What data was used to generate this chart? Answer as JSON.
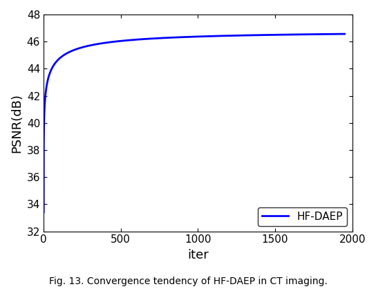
{
  "xlabel": "iter",
  "ylabel": "PSNR(dB)",
  "caption": "Fig. 13. Convergence tendency of HF-DAEP in CT imaging.",
  "legend_label": "HF-DAEP",
  "line_color": "#0000ff",
  "line_width": 2.0,
  "xlim": [
    0,
    2000
  ],
  "ylim": [
    32,
    48
  ],
  "xticks": [
    0,
    500,
    1000,
    1500,
    2000
  ],
  "yticks": [
    32,
    34,
    36,
    38,
    40,
    42,
    44,
    46,
    48
  ],
  "start_val": 33.4,
  "plateau_val": 46.75,
  "alpha": 0.276,
  "B": 0.53
}
